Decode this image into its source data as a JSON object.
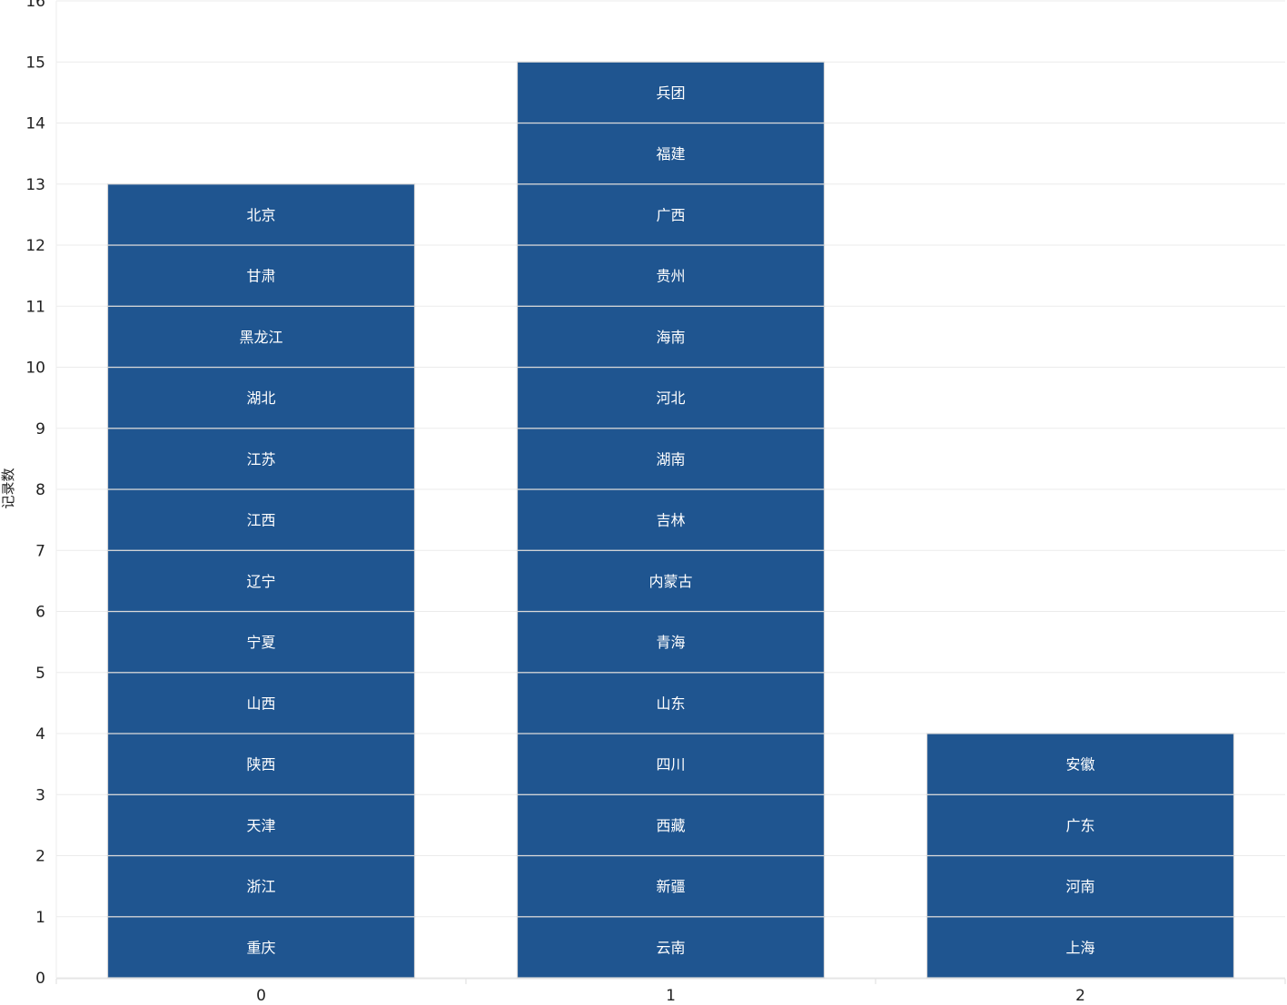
{
  "chart_data": {
    "type": "bar",
    "stacked": true,
    "categories": [
      "0",
      "1",
      "2"
    ],
    "ylabel": "记录数",
    "xlabel": "",
    "ylim": [
      0,
      16
    ],
    "yticks": [
      0,
      1,
      2,
      3,
      4,
      5,
      6,
      7,
      8,
      9,
      10,
      11,
      12,
      13,
      14,
      15,
      16
    ],
    "grid": true,
    "bar_color": "#1f5590",
    "bars": [
      {
        "category": "0",
        "value": 13,
        "segments": [
          "重庆",
          "浙江",
          "天津",
          "陕西",
          "山西",
          "宁夏",
          "辽宁",
          "江西",
          "江苏",
          "湖北",
          "黑龙江",
          "甘肃",
          "北京"
        ]
      },
      {
        "category": "1",
        "value": 15,
        "segments": [
          "云南",
          "新疆",
          "西藏",
          "四川",
          "山东",
          "青海",
          "内蒙古",
          "吉林",
          "湖南",
          "河北",
          "海南",
          "贵州",
          "广西",
          "福建",
          "兵团"
        ]
      },
      {
        "category": "2",
        "value": 4,
        "segments": [
          "上海",
          "河南",
          "广东",
          "安徽"
        ]
      }
    ]
  }
}
